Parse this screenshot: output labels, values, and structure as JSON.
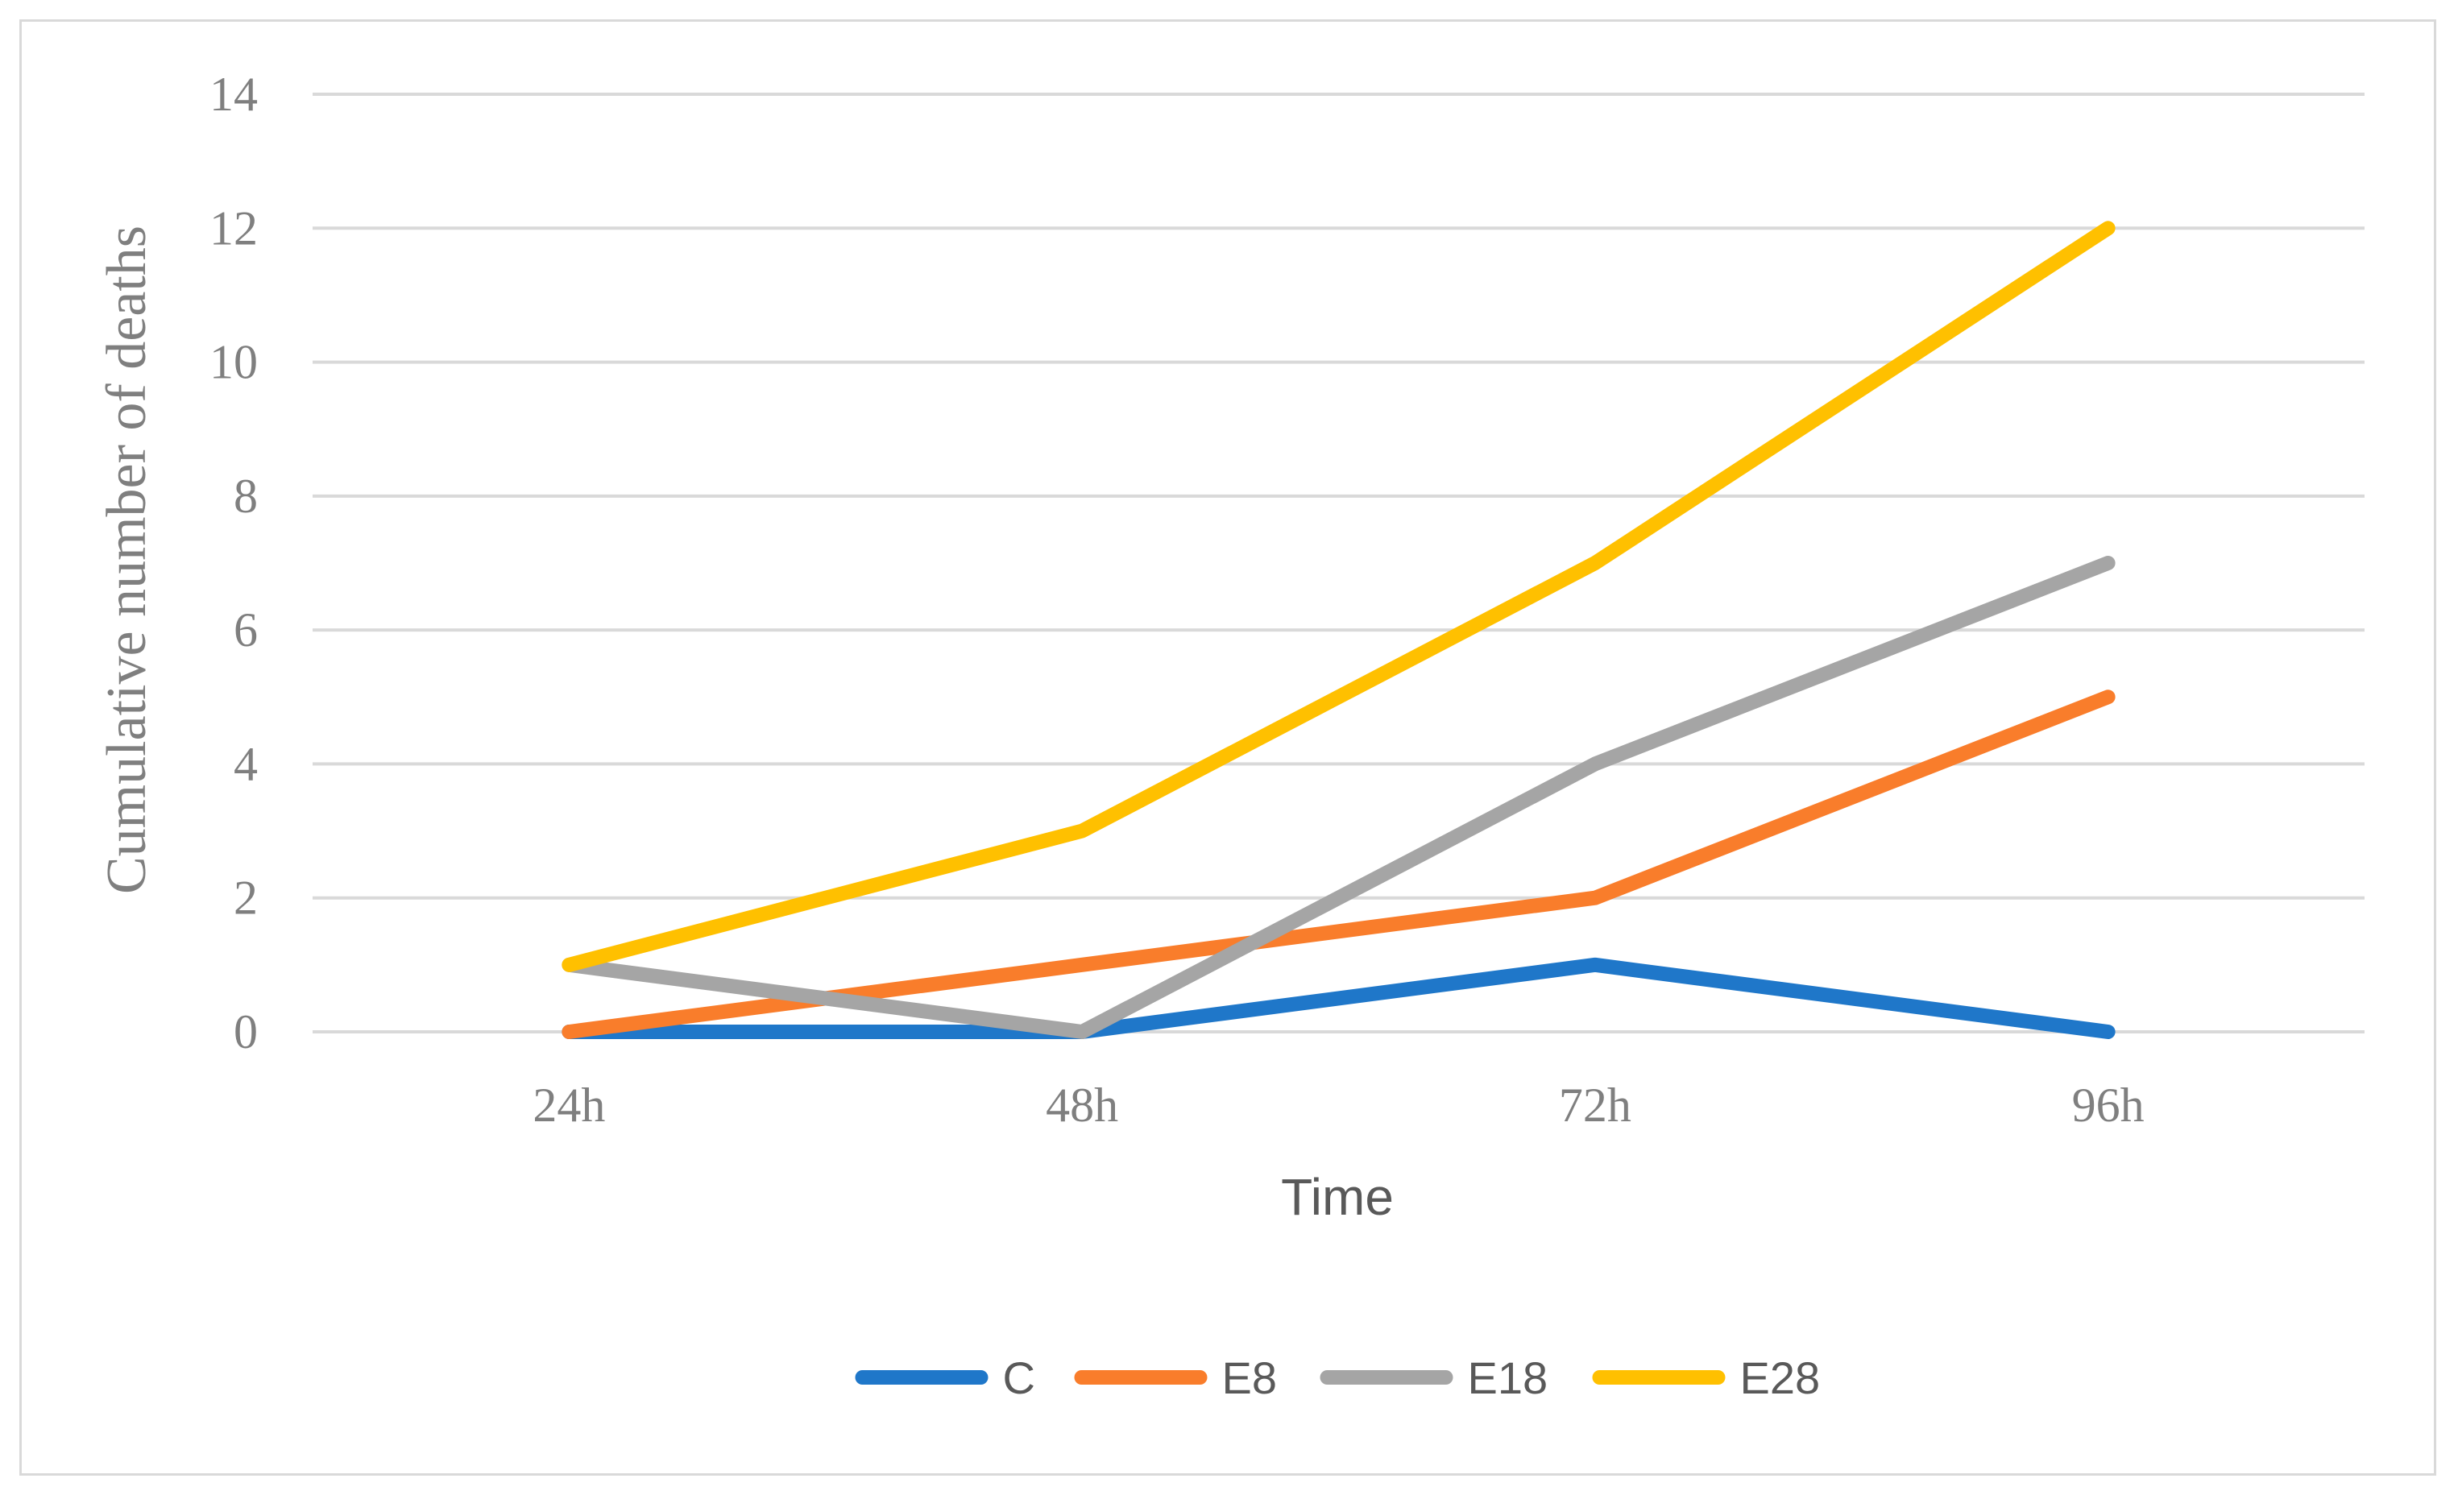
{
  "chart_data": {
    "type": "line",
    "title": "",
    "xlabel": "Time",
    "ylabel": "Cumulative number of deaths",
    "categories": [
      "24h",
      "48h",
      "72h",
      "96h"
    ],
    "ylim": [
      0,
      14
    ],
    "yticks": [
      0,
      2,
      4,
      6,
      8,
      10,
      12,
      14
    ],
    "grid": true,
    "legend_position": "bottom",
    "series": [
      {
        "name": "C",
        "color": "#1f77c9",
        "values": [
          0,
          0,
          1,
          0
        ]
      },
      {
        "name": "E8",
        "color": "#f97d2b",
        "values": [
          0,
          1,
          2,
          5
        ]
      },
      {
        "name": "E18",
        "color": "#a5a5a5",
        "values": [
          1,
          0,
          4,
          7
        ]
      },
      {
        "name": "E28",
        "color": "#ffc000",
        "values": [
          1,
          3,
          7,
          12
        ]
      }
    ]
  }
}
